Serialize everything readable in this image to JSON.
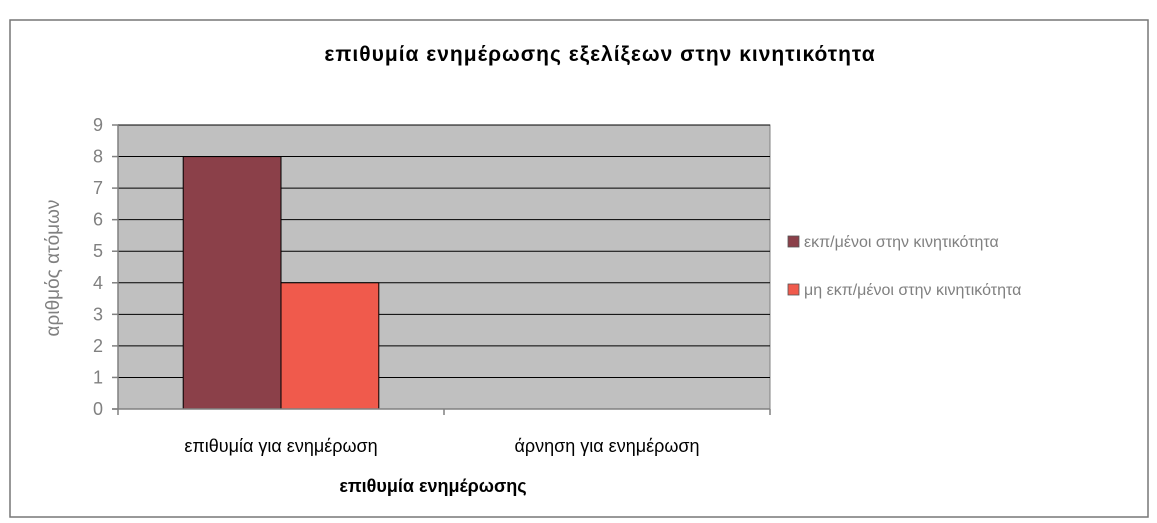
{
  "chart_data": {
    "type": "bar",
    "title": "επιθυμία ενημέρωσης εξελίξεων στην κινητικότητα",
    "xlabel": "επιθυμία ενημέρωσης",
    "ylabel": "αριθμός ατόμων",
    "categories": [
      "επιθυμία για ενημέρωση",
      "άρνηση για ενημέρωση"
    ],
    "series": [
      {
        "name": "εκπ/μένοι στην κινητικότητα",
        "values": [
          8,
          0
        ],
        "color": "#8b4049"
      },
      {
        "name": "μη εκπ/μένοι στην κινητικότητα",
        "values": [
          4,
          0
        ],
        "color": "#f05a4c"
      }
    ],
    "ylim": [
      0,
      9
    ],
    "yticks": [
      "0",
      "1",
      "2",
      "3",
      "4",
      "5",
      "6",
      "7",
      "8",
      "9"
    ],
    "grid": true,
    "legend_position": "right",
    "plot_background": "#c0c0c0"
  }
}
